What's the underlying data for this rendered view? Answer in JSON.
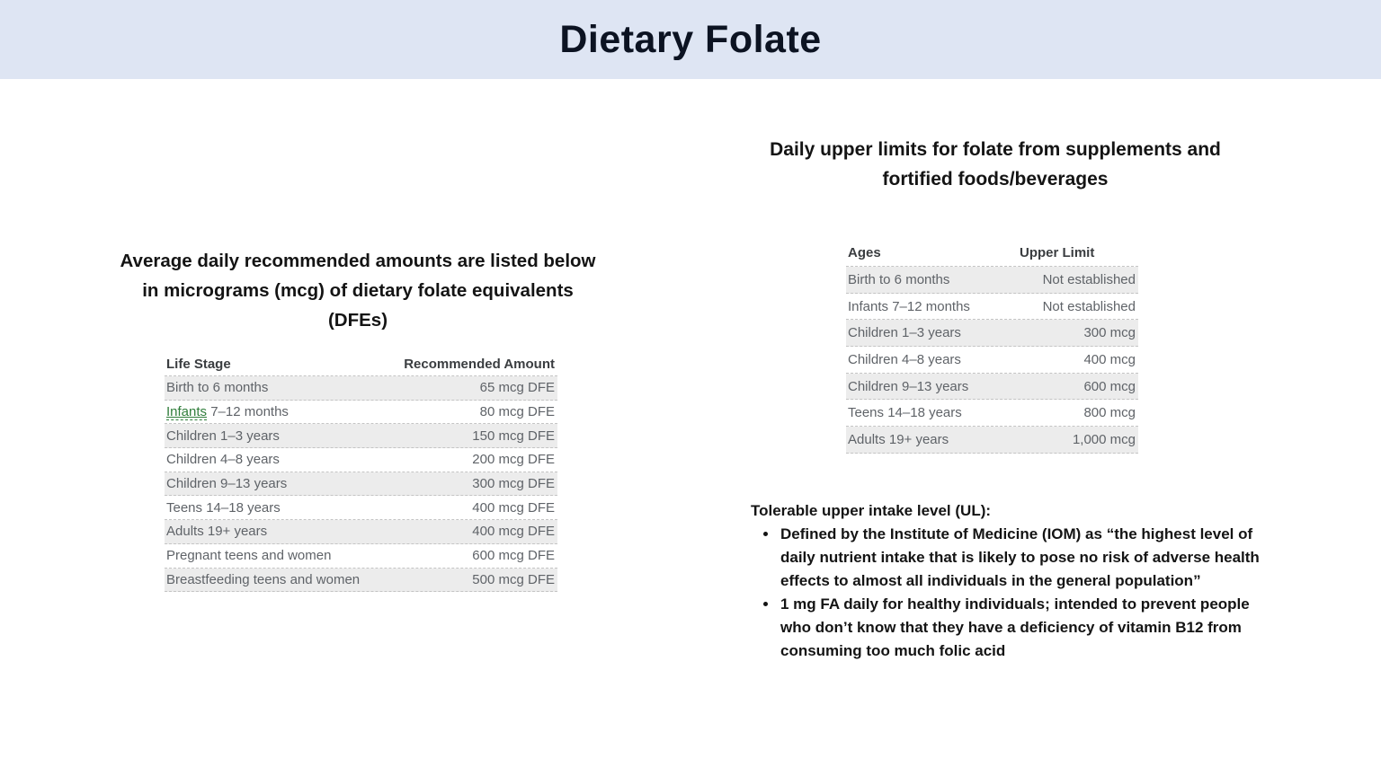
{
  "header": {
    "title": "Dietary Folate"
  },
  "colors": {
    "accent_band": "#dee5f3",
    "title_color": "#0c1322",
    "row_shade": "#ececec",
    "link_green": "#2f7d3a"
  },
  "left_section": {
    "heading": "Average daily recommended amounts are listed below in micrograms (mcg) of dietary folate equivalents (DFEs)",
    "table": {
      "columns": [
        "Life Stage",
        "Recommended Amount"
      ],
      "rows": [
        {
          "stage": "Birth to 6 months",
          "amount": "65 mcg DFE"
        },
        {
          "stage": "Infants 7–12 months",
          "amount": "80 mcg DFE",
          "link_text": "Infants"
        },
        {
          "stage": "Children 1–3 years",
          "amount": "150 mcg DFE"
        },
        {
          "stage": "Children 4–8 years",
          "amount": "200 mcg DFE"
        },
        {
          "stage": "Children 9–13 years",
          "amount": "300 mcg DFE"
        },
        {
          "stage": "Teens 14–18 years",
          "amount": "400 mcg DFE"
        },
        {
          "stage": "Adults 19+ years",
          "amount": "400 mcg DFE"
        },
        {
          "stage": "Pregnant teens and women",
          "amount": "600 mcg DFE"
        },
        {
          "stage": "Breastfeeding teens and women",
          "amount": "500 mcg DFE"
        }
      ]
    }
  },
  "right_section": {
    "heading": "Daily upper limits for folate from supplements and fortified foods/beverages",
    "table": {
      "columns": [
        "Ages",
        "Upper Limit"
      ],
      "rows": [
        {
          "ages": "Birth to 6 months",
          "limit": "Not established"
        },
        {
          "ages": "Infants 7–12 months",
          "limit": "Not established"
        },
        {
          "ages": "Children 1–3 years",
          "limit": "300 mcg"
        },
        {
          "ages": "Children 4–8 years",
          "limit": "400 mcg"
        },
        {
          "ages": "Children 9–13 years",
          "limit": "600 mcg"
        },
        {
          "ages": "Teens 14–18 years",
          "limit": "800 mcg"
        },
        {
          "ages": "Adults 19+ years",
          "limit": "1,000 mcg"
        }
      ]
    },
    "notes": {
      "title": "Tolerable upper intake level (UL):",
      "bullets": [
        "Defined by the Institute of Medicine (IOM) as “the highest level of daily nutrient intake that is likely to pose no risk of adverse health effects to almost all individuals in the general population”",
        "1 mg FA daily for healthy individuals; intended to prevent people who don’t know that they have a deficiency of vitamin B12 from consuming too much folic acid"
      ]
    }
  }
}
